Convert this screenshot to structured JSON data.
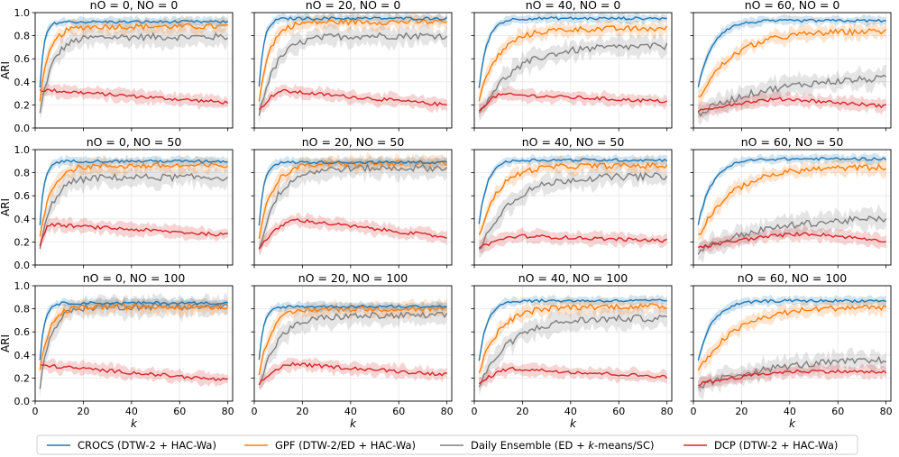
{
  "figure": {
    "y_axis_label": "ARI",
    "x_axis_label": "k",
    "x_ticks": [
      "0",
      "20",
      "40",
      "60",
      "80"
    ],
    "y_ticks": [
      "0.0",
      "0.2",
      "0.4",
      "0.6",
      "0.8",
      "1.0"
    ]
  },
  "legend": [
    {
      "key": "crocs",
      "label": "CROCS (DTW-2 + HAC-Wa)",
      "color": "#1f77b4"
    },
    {
      "key": "gpf",
      "label": "GPF (DTW-2/ED + HAC-Wa)",
      "color": "#ff7f0e"
    },
    {
      "key": "daily",
      "label": "Daily Ensemble (ED + k-means/SC)",
      "color": "#7f7f7f"
    },
    {
      "key": "dcp",
      "label": "DCP (DTW-2 + HAC-Wa)",
      "color": "#d62728"
    }
  ],
  "chart_data": {
    "type": "line",
    "xlim": [
      0,
      82
    ],
    "ylim": [
      0,
      1
    ],
    "series_keys": [
      "crocs",
      "gpf",
      "daily",
      "dcp"
    ],
    "grid": "on",
    "legend_position": "bottom-center",
    "panels": [
      {
        "title": "nO = 0, NO = 0",
        "n_o": "0",
        "N_o": "0",
        "final": {
          "crocs": 0.92,
          "gpf": 0.88,
          "daily": 0.79,
          "dcp": 0.22
        },
        "rate": {
          "crocs": 0.6,
          "gpf": 0.25,
          "daily": 0.2
        },
        "dcp_peak": {
          "x": 3,
          "y": 0.33
        }
      },
      {
        "title": "nO = 20, NO = 0",
        "n_o": "20",
        "N_o": "0",
        "final": {
          "crocs": 0.95,
          "gpf": 0.92,
          "daily": 0.8,
          "dcp": 0.2
        },
        "rate": {
          "crocs": 0.5,
          "gpf": 0.22,
          "daily": 0.14
        },
        "dcp_peak": {
          "x": 12,
          "y": 0.32
        }
      },
      {
        "title": "nO = 40, NO = 0",
        "n_o": "40",
        "N_o": "0",
        "final": {
          "crocs": 0.95,
          "gpf": 0.86,
          "daily": 0.71,
          "dcp": 0.23
        },
        "rate": {
          "crocs": 0.3,
          "gpf": 0.12,
          "daily": 0.07
        },
        "dcp_peak": {
          "x": 12,
          "y": 0.29
        }
      },
      {
        "title": "nO = 60, NO = 0",
        "n_o": "60",
        "N_o": "0",
        "final": {
          "crocs": 0.93,
          "gpf": 0.84,
          "daily": 0.45,
          "dcp": 0.19
        },
        "rate": {
          "crocs": 0.17,
          "gpf": 0.07,
          "daily": 0.035
        },
        "dcp_peak": {
          "x": 40,
          "y": 0.25
        }
      },
      {
        "title": "nO = 0, NO = 50",
        "n_o": "0",
        "N_o": "50",
        "final": {
          "crocs": 0.9,
          "gpf": 0.86,
          "daily": 0.76,
          "dcp": 0.26
        },
        "rate": {
          "crocs": 0.55,
          "gpf": 0.22,
          "daily": 0.2
        },
        "dcp_peak": {
          "x": 6,
          "y": 0.35
        }
      },
      {
        "title": "nO = 20, NO = 50",
        "n_o": "20",
        "N_o": "50",
        "final": {
          "crocs": 0.89,
          "gpf": 0.88,
          "daily": 0.84,
          "dcp": 0.24
        },
        "rate": {
          "crocs": 0.5,
          "gpf": 0.18,
          "daily": 0.14
        },
        "dcp_peak": {
          "x": 18,
          "y": 0.39
        }
      },
      {
        "title": "nO = 40, NO = 50",
        "n_o": "40",
        "N_o": "50",
        "final": {
          "crocs": 0.91,
          "gpf": 0.86,
          "daily": 0.77,
          "dcp": 0.21
        },
        "rate": {
          "crocs": 0.3,
          "gpf": 0.13,
          "daily": 0.08
        },
        "dcp_peak": {
          "x": 20,
          "y": 0.25
        }
      },
      {
        "title": "nO = 60, NO = 50",
        "n_o": "60",
        "N_o": "50",
        "final": {
          "crocs": 0.92,
          "gpf": 0.85,
          "daily": 0.42,
          "dcp": 0.21
        },
        "rate": {
          "crocs": 0.17,
          "gpf": 0.07,
          "daily": 0.035
        },
        "dcp_peak": {
          "x": 50,
          "y": 0.27
        }
      },
      {
        "title": "nO = 0, NO = 100",
        "n_o": "0",
        "N_o": "100",
        "final": {
          "crocs": 0.85,
          "gpf": 0.82,
          "daily": 0.82,
          "dcp": 0.18
        },
        "rate": {
          "crocs": 0.55,
          "gpf": 0.25,
          "daily": 0.22
        },
        "dcp_peak": {
          "x": 3,
          "y": 0.31
        }
      },
      {
        "title": "nO = 20, NO = 100",
        "n_o": "20",
        "N_o": "100",
        "final": {
          "crocs": 0.82,
          "gpf": 0.8,
          "daily": 0.74,
          "dcp": 0.23
        },
        "rate": {
          "crocs": 0.5,
          "gpf": 0.2,
          "daily": 0.13
        },
        "dcp_peak": {
          "x": 16,
          "y": 0.32
        }
      },
      {
        "title": "nO = 40, NO = 100",
        "n_o": "40",
        "N_o": "100",
        "final": {
          "crocs": 0.87,
          "gpf": 0.82,
          "daily": 0.72,
          "dcp": 0.21
        },
        "rate": {
          "crocs": 0.3,
          "gpf": 0.12,
          "daily": 0.08
        },
        "dcp_peak": {
          "x": 16,
          "y": 0.28
        }
      },
      {
        "title": "nO = 60, NO = 100",
        "n_o": "60",
        "N_o": "100",
        "final": {
          "crocs": 0.87,
          "gpf": 0.82,
          "daily": 0.37,
          "dcp": 0.25
        },
        "rate": {
          "crocs": 0.17,
          "gpf": 0.065,
          "daily": 0.035
        },
        "dcp_peak": {
          "x": 50,
          "y": 0.26
        }
      }
    ]
  }
}
